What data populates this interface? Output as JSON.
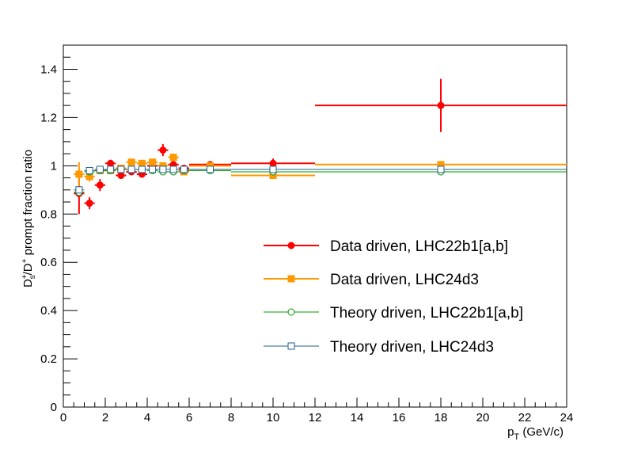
{
  "chart_data": {
    "type": "scatter",
    "xlabel": "p_T (GeV/c)",
    "xlabel_parts": {
      "main": "p",
      "sub": "T",
      "rest": " (GeV/c)"
    },
    "ylabel": "D_s^+/D^+ prompt fraction ratio",
    "ylabel_parts": {
      "a": "D",
      "a_sup": "+",
      "a_sub": "s",
      "b": "/D",
      "b_sup": "+",
      "c": " prompt fraction ratio"
    },
    "xlim": [
      0,
      24
    ],
    "ylim": [
      0,
      1.5
    ],
    "x_ticks": [
      0,
      2,
      4,
      6,
      8,
      10,
      12,
      14,
      16,
      18,
      20,
      22,
      24
    ],
    "y_ticks": [
      0,
      0.2,
      0.4,
      0.6,
      0.8,
      1,
      1.2,
      1.4
    ],
    "grid": false,
    "legend_position": "center-right",
    "series": [
      {
        "name": "Data driven, LHC22b1[a,b]",
        "color": "#ff0000",
        "marker": "filled-circle",
        "points": [
          {
            "x": 0.75,
            "xerr": 0.25,
            "y": 0.885,
            "yerr": 0.085
          },
          {
            "x": 1.25,
            "xerr": 0.25,
            "y": 0.845,
            "yerr": 0.025
          },
          {
            "x": 1.75,
            "xerr": 0.25,
            "y": 0.92,
            "yerr": 0.025
          },
          {
            "x": 2.25,
            "xerr": 0.25,
            "y": 1.01,
            "yerr": 0.015
          },
          {
            "x": 2.75,
            "xerr": 0.25,
            "y": 0.96,
            "yerr": 0.012
          },
          {
            "x": 3.25,
            "xerr": 0.25,
            "y": 0.975,
            "yerr": 0.01
          },
          {
            "x": 3.75,
            "xerr": 0.25,
            "y": 0.965,
            "yerr": 0.01
          },
          {
            "x": 4.25,
            "xerr": 0.25,
            "y": 1.0,
            "yerr": 0.01
          },
          {
            "x": 4.75,
            "xerr": 0.25,
            "y": 1.065,
            "yerr": 0.025
          },
          {
            "x": 5.25,
            "xerr": 0.25,
            "y": 1.005,
            "yerr": 0.015
          },
          {
            "x": 5.75,
            "xerr": 0.25,
            "y": 0.99,
            "yerr": 0.01
          },
          {
            "x": 7.0,
            "xerr": 1.0,
            "y": 1.005,
            "yerr": 0.01
          },
          {
            "x": 10.0,
            "xerr": 2.0,
            "y": 1.01,
            "yerr": 0.02
          },
          {
            "x": 18.0,
            "xerr": 6.0,
            "y": 1.25,
            "yerr": 0.11
          }
        ]
      },
      {
        "name": "Data driven, LHC24d3",
        "color": "#ff9900",
        "marker": "filled-square",
        "points": [
          {
            "x": 0.75,
            "xerr": 0.25,
            "y": 0.965,
            "yerr": 0.05
          },
          {
            "x": 1.25,
            "xerr": 0.25,
            "y": 0.955,
            "yerr": 0.02
          },
          {
            "x": 1.75,
            "xerr": 0.25,
            "y": 0.98,
            "yerr": 0.01
          },
          {
            "x": 2.25,
            "xerr": 0.25,
            "y": 0.98,
            "yerr": 0.01
          },
          {
            "x": 2.75,
            "xerr": 0.25,
            "y": 0.99,
            "yerr": 0.01
          },
          {
            "x": 3.25,
            "xerr": 0.25,
            "y": 1.015,
            "yerr": 0.01
          },
          {
            "x": 3.75,
            "xerr": 0.25,
            "y": 1.01,
            "yerr": 0.01
          },
          {
            "x": 4.25,
            "xerr": 0.25,
            "y": 1.015,
            "yerr": 0.01
          },
          {
            "x": 4.75,
            "xerr": 0.25,
            "y": 1.0,
            "yerr": 0.01
          },
          {
            "x": 5.25,
            "xerr": 0.25,
            "y": 1.035,
            "yerr": 0.015
          },
          {
            "x": 5.75,
            "xerr": 0.25,
            "y": 0.975,
            "yerr": 0.01
          },
          {
            "x": 7.0,
            "xerr": 1.0,
            "y": 1.0,
            "yerr": 0.01
          },
          {
            "x": 10.0,
            "xerr": 2.0,
            "y": 0.96,
            "yerr": 0.01
          },
          {
            "x": 18.0,
            "xerr": 6.0,
            "y": 1.005,
            "yerr": 0.01
          }
        ]
      },
      {
        "name": "Theory driven, LHC22b1[a,b]",
        "color": "#009900",
        "marker": "open-circle",
        "points": [
          {
            "x": 0.75,
            "xerr": 0.25,
            "y": 0.89,
            "yerr": 0.01
          },
          {
            "x": 1.25,
            "xerr": 0.25,
            "y": 0.975,
            "yerr": 0.01
          },
          {
            "x": 1.75,
            "xerr": 0.25,
            "y": 0.98,
            "yerr": 0.008
          },
          {
            "x": 2.25,
            "xerr": 0.25,
            "y": 0.98,
            "yerr": 0.008
          },
          {
            "x": 2.75,
            "xerr": 0.25,
            "y": 0.985,
            "yerr": 0.008
          },
          {
            "x": 3.25,
            "xerr": 0.25,
            "y": 0.985,
            "yerr": 0.008
          },
          {
            "x": 3.75,
            "xerr": 0.25,
            "y": 0.985,
            "yerr": 0.008
          },
          {
            "x": 4.25,
            "xerr": 0.25,
            "y": 0.98,
            "yerr": 0.008
          },
          {
            "x": 4.75,
            "xerr": 0.25,
            "y": 0.975,
            "yerr": 0.008
          },
          {
            "x": 5.25,
            "xerr": 0.25,
            "y": 0.975,
            "yerr": 0.008
          },
          {
            "x": 5.75,
            "xerr": 0.25,
            "y": 0.98,
            "yerr": 0.008
          },
          {
            "x": 7.0,
            "xerr": 1.0,
            "y": 0.98,
            "yerr": 0.008
          },
          {
            "x": 10.0,
            "xerr": 2.0,
            "y": 0.975,
            "yerr": 0.008
          },
          {
            "x": 18.0,
            "xerr": 6.0,
            "y": 0.975,
            "yerr": 0.01
          }
        ]
      },
      {
        "name": "Theory driven, LHC24d3",
        "color": "#1f5f8b",
        "marker": "open-square",
        "points": [
          {
            "x": 0.75,
            "xerr": 0.25,
            "y": 0.9,
            "yerr": 0.01
          },
          {
            "x": 1.25,
            "xerr": 0.25,
            "y": 0.98,
            "yerr": 0.008
          },
          {
            "x": 1.75,
            "xerr": 0.25,
            "y": 0.985,
            "yerr": 0.008
          },
          {
            "x": 2.25,
            "xerr": 0.25,
            "y": 0.985,
            "yerr": 0.008
          },
          {
            "x": 2.75,
            "xerr": 0.25,
            "y": 0.985,
            "yerr": 0.008
          },
          {
            "x": 3.25,
            "xerr": 0.25,
            "y": 0.985,
            "yerr": 0.008
          },
          {
            "x": 3.75,
            "xerr": 0.25,
            "y": 0.985,
            "yerr": 0.008
          },
          {
            "x": 4.25,
            "xerr": 0.25,
            "y": 0.985,
            "yerr": 0.008
          },
          {
            "x": 4.75,
            "xerr": 0.25,
            "y": 0.985,
            "yerr": 0.008
          },
          {
            "x": 5.25,
            "xerr": 0.25,
            "y": 0.985,
            "yerr": 0.008
          },
          {
            "x": 5.75,
            "xerr": 0.25,
            "y": 0.985,
            "yerr": 0.008
          },
          {
            "x": 7.0,
            "xerr": 1.0,
            "y": 0.985,
            "yerr": 0.008
          },
          {
            "x": 10.0,
            "xerr": 2.0,
            "y": 0.985,
            "yerr": 0.008
          },
          {
            "x": 18.0,
            "xerr": 6.0,
            "y": 0.985,
            "yerr": 0.008
          }
        ]
      }
    ]
  }
}
